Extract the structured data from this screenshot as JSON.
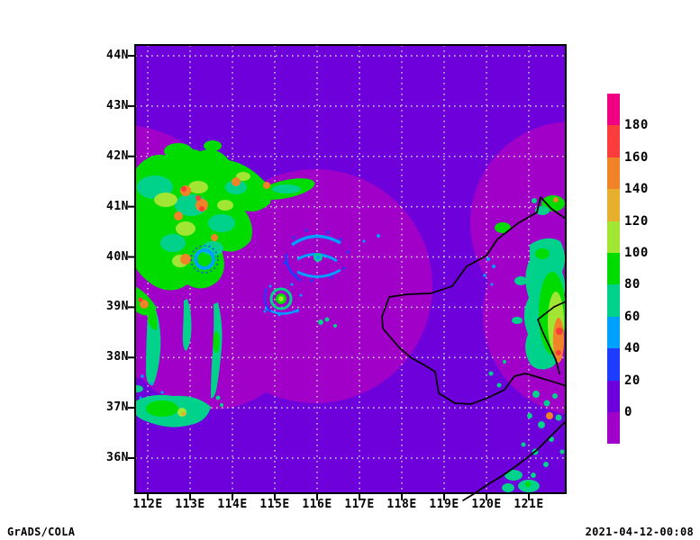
{
  "footer": {
    "left": "GrADS/COLA",
    "right": "2021-04-12-00:08"
  },
  "chart_data": {
    "type": "heatmap",
    "title": "",
    "description": "Composite weather-radar reflectivity mosaic over the Bohai Sea / North China region, purple shading shows radar coverage circles, colored echoes show precipitation cells and two small vortices, black lines are coastlines",
    "x_axis": {
      "tick_labels": [
        "112E",
        "113E",
        "114E",
        "115E",
        "116E",
        "117E",
        "118E",
        "119E",
        "120E",
        "121E"
      ],
      "lon_range_approx": [
        111.7,
        121.9
      ]
    },
    "y_axis": {
      "tick_labels": [
        "44N",
        "43N",
        "42N",
        "41N",
        "40N",
        "39N",
        "38N",
        "37N",
        "36N"
      ],
      "lat_range_approx": [
        35.3,
        44.2
      ]
    },
    "colorbar": {
      "tick_values": [
        0,
        20,
        40,
        60,
        80,
        100,
        120,
        140,
        160,
        180
      ],
      "colors_low_to_high": [
        "#a000c8",
        "#6e00dc",
        "#1e3cff",
        "#00a0ff",
        "#00d28c",
        "#00dc00",
        "#a0e632",
        "#e6af2d",
        "#f08228",
        "#fa3c3c",
        "#f00082"
      ]
    },
    "background_fill": "#6e00dc",
    "radar_coverage_fill": "#a000c8",
    "grid_color": "#d2d2d2",
    "coverage_circle_centers_lonlat_approx": [
      [
        111.3,
        40.1
      ],
      [
        113.8,
        38.9
      ],
      [
        116.0,
        39.4
      ],
      [
        122.1,
        40.8
      ],
      [
        122.2,
        38.8
      ]
    ],
    "grid_interval_deg": 1,
    "legend_position": "right"
  }
}
